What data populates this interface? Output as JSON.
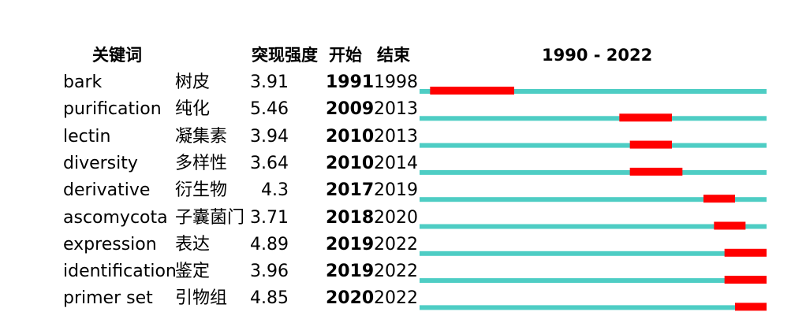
{
  "chart_data": {
    "type": "table",
    "headers": {
      "keyword": "关键词",
      "strength": "突现强度",
      "begin": "开始",
      "end": "结束",
      "range": "1990 - 2022"
    },
    "year_min": 1990,
    "year_max": 2022,
    "colors": {
      "baseline": "#4ecdc4",
      "burst": "#ff0000"
    },
    "rows": [
      {
        "keyword": "bark",
        "keyword_cn": "树皮",
        "strength": "3.91",
        "begin": "1991",
        "end": "1998"
      },
      {
        "keyword": "purification",
        "keyword_cn": "纯化",
        "strength": "5.46",
        "begin": "2009",
        "end": "2013"
      },
      {
        "keyword": "lectin",
        "keyword_cn": "凝集素",
        "strength": "3.94",
        "begin": "2010",
        "end": "2013"
      },
      {
        "keyword": "diversity",
        "keyword_cn": "多样性",
        "strength": "3.64",
        "begin": "2010",
        "end": "2014"
      },
      {
        "keyword": "derivative",
        "keyword_cn": "衍生物",
        "strength": "4.3",
        "begin": "2017",
        "end": "2019"
      },
      {
        "keyword": "ascomycota",
        "keyword_cn": "子囊菌门",
        "strength": "3.71",
        "begin": "2018",
        "end": "2020"
      },
      {
        "keyword": "expression",
        "keyword_cn": "表达",
        "strength": "4.89",
        "begin": "2019",
        "end": "2022"
      },
      {
        "keyword": "identification",
        "keyword_cn": "鉴定",
        "strength": "3.96",
        "begin": "2019",
        "end": "2022"
      },
      {
        "keyword": "primer set",
        "keyword_cn": "引物组",
        "strength": "4.85",
        "begin": "2020",
        "end": "2022"
      }
    ]
  }
}
